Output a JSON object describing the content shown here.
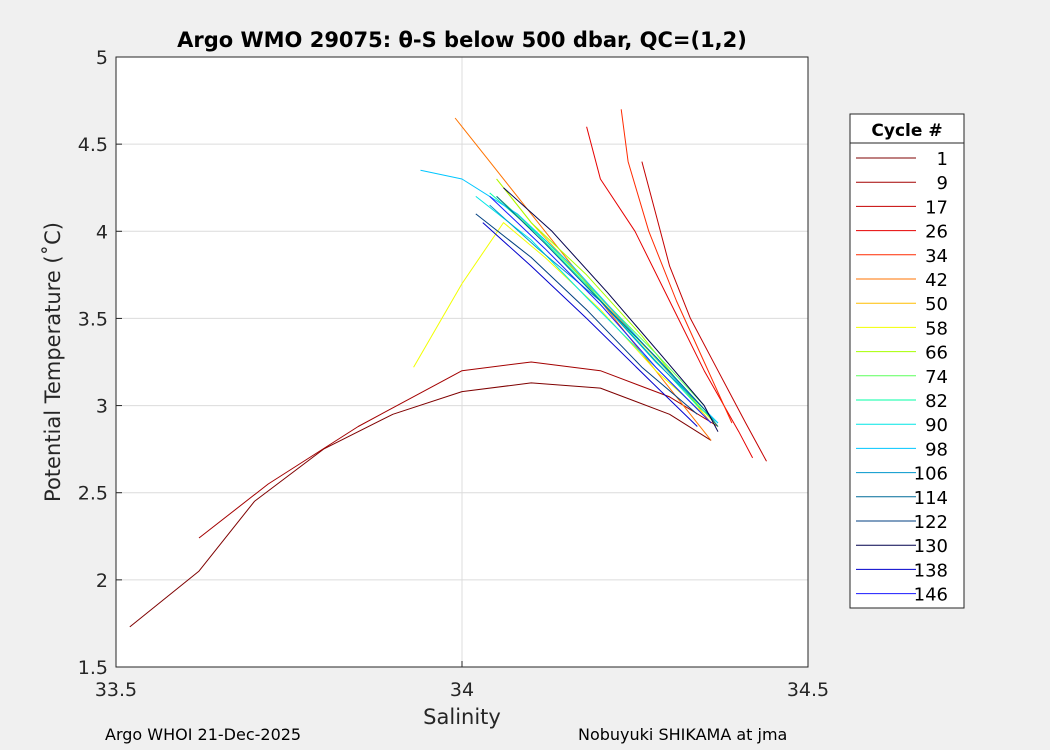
{
  "chart_data": {
    "type": "line",
    "title": "Argo WMO 29075: θ-S below 500 dbar,  QC=(1,2)",
    "xlabel": "Salinity",
    "ylabel": "Potential Temperature (˚C)",
    "xlim": [
      33.5,
      34.5
    ],
    "ylim": [
      1.5,
      5
    ],
    "xticks": [
      33.5,
      34,
      34.5
    ],
    "xtick_labels": [
      "33.5",
      "34",
      "34.5"
    ],
    "yticks": [
      1.5,
      2,
      2.5,
      3,
      3.5,
      4,
      4.5,
      5
    ],
    "ytick_labels": [
      "1.5",
      "2",
      "2.5",
      "3",
      "3.5",
      "4",
      "4.5",
      "5"
    ],
    "grid": true,
    "legend_title": "Cycle #",
    "legend_position": "right",
    "series": [
      {
        "name": "1",
        "color": "#7f0000",
        "values": [
          [
            33.52,
            1.73
          ],
          [
            33.62,
            2.05
          ],
          [
            33.7,
            2.45
          ],
          [
            33.8,
            2.75
          ],
          [
            33.9,
            2.95
          ],
          [
            34.0,
            3.08
          ],
          [
            34.1,
            3.13
          ],
          [
            34.2,
            3.1
          ],
          [
            34.3,
            2.95
          ],
          [
            34.36,
            2.8
          ]
        ]
      },
      {
        "name": "9",
        "color": "#a30000",
        "values": [
          [
            33.62,
            2.24
          ],
          [
            33.72,
            2.55
          ],
          [
            33.85,
            2.88
          ],
          [
            34.0,
            3.2
          ],
          [
            34.1,
            3.25
          ],
          [
            34.2,
            3.2
          ],
          [
            34.3,
            3.05
          ],
          [
            34.37,
            2.88
          ]
        ]
      },
      {
        "name": "17",
        "color": "#c40000",
        "values": [
          [
            34.26,
            4.4
          ],
          [
            34.28,
            4.1
          ],
          [
            34.3,
            3.8
          ],
          [
            34.33,
            3.5
          ],
          [
            34.37,
            3.2
          ],
          [
            34.41,
            2.9
          ],
          [
            34.44,
            2.68
          ]
        ]
      },
      {
        "name": "26",
        "color": "#e60000",
        "values": [
          [
            34.18,
            4.6
          ],
          [
            34.2,
            4.3
          ],
          [
            34.25,
            4.0
          ],
          [
            34.3,
            3.6
          ],
          [
            34.35,
            3.2
          ],
          [
            34.4,
            2.85
          ],
          [
            34.42,
            2.7
          ]
        ]
      },
      {
        "name": "34",
        "color": "#ff2a00",
        "values": [
          [
            34.23,
            4.7
          ],
          [
            34.24,
            4.4
          ],
          [
            34.27,
            4.0
          ],
          [
            34.31,
            3.6
          ],
          [
            34.35,
            3.25
          ],
          [
            34.39,
            2.9
          ]
        ]
      },
      {
        "name": "42",
        "color": "#ff7300",
        "values": [
          [
            33.99,
            4.65
          ],
          [
            34.04,
            4.4
          ],
          [
            34.1,
            4.1
          ],
          [
            34.18,
            3.7
          ],
          [
            34.26,
            3.3
          ],
          [
            34.32,
            3.0
          ],
          [
            34.36,
            2.8
          ]
        ]
      },
      {
        "name": "50",
        "color": "#ffbd00",
        "values": [
          [
            34.05,
            4.3
          ],
          [
            34.1,
            4.05
          ],
          [
            34.17,
            3.75
          ],
          [
            34.25,
            3.4
          ],
          [
            34.32,
            3.1
          ],
          [
            34.36,
            2.9
          ]
        ]
      },
      {
        "name": "58",
        "color": "#f2ff00",
        "values": [
          [
            33.93,
            3.22
          ],
          [
            34.0,
            3.7
          ],
          [
            34.06,
            4.05
          ],
          [
            34.12,
            3.85
          ],
          [
            34.2,
            3.55
          ],
          [
            34.28,
            3.2
          ],
          [
            34.35,
            2.95
          ]
        ]
      },
      {
        "name": "66",
        "color": "#a6ff00",
        "values": [
          [
            34.05,
            4.3
          ],
          [
            34.1,
            4.05
          ],
          [
            34.18,
            3.75
          ],
          [
            34.26,
            3.4
          ],
          [
            34.33,
            3.05
          ],
          [
            34.37,
            2.88
          ]
        ]
      },
      {
        "name": "74",
        "color": "#5cff5c",
        "values": [
          [
            34.05,
            4.2
          ],
          [
            34.12,
            3.95
          ],
          [
            34.2,
            3.62
          ],
          [
            34.28,
            3.3
          ],
          [
            34.35,
            3.0
          ]
        ]
      },
      {
        "name": "82",
        "color": "#00ffa6",
        "values": [
          [
            34.04,
            4.22
          ],
          [
            34.11,
            3.98
          ],
          [
            34.19,
            3.65
          ],
          [
            34.27,
            3.3
          ],
          [
            34.34,
            3.0
          ],
          [
            34.37,
            2.9
          ]
        ]
      },
      {
        "name": "90",
        "color": "#00e6e6",
        "values": [
          [
            34.02,
            4.2
          ],
          [
            34.1,
            3.95
          ],
          [
            34.18,
            3.62
          ],
          [
            34.26,
            3.3
          ],
          [
            34.34,
            2.98
          ]
        ]
      },
      {
        "name": "98",
        "color": "#00c6ff",
        "values": [
          [
            33.94,
            4.35
          ],
          [
            34.0,
            4.3
          ],
          [
            34.08,
            4.1
          ],
          [
            34.16,
            3.8
          ],
          [
            34.24,
            3.45
          ],
          [
            34.32,
            3.1
          ],
          [
            34.37,
            2.9
          ]
        ]
      },
      {
        "name": "106",
        "color": "#0096cc",
        "values": [
          [
            34.04,
            4.15
          ],
          [
            34.11,
            3.9
          ],
          [
            34.2,
            3.6
          ],
          [
            34.28,
            3.25
          ],
          [
            34.35,
            2.98
          ]
        ]
      },
      {
        "name": "114",
        "color": "#006b99",
        "values": [
          [
            34.05,
            4.2
          ],
          [
            34.12,
            3.93
          ],
          [
            34.2,
            3.6
          ],
          [
            34.28,
            3.28
          ],
          [
            34.35,
            2.98
          ],
          [
            34.37,
            2.88
          ]
        ]
      },
      {
        "name": "122",
        "color": "#003f80",
        "values": [
          [
            34.02,
            4.1
          ],
          [
            34.1,
            3.85
          ],
          [
            34.18,
            3.55
          ],
          [
            34.26,
            3.22
          ],
          [
            34.34,
            2.95
          ]
        ]
      },
      {
        "name": "130",
        "color": "#00004d",
        "values": [
          [
            34.06,
            4.25
          ],
          [
            34.13,
            4.0
          ],
          [
            34.21,
            3.65
          ],
          [
            34.29,
            3.28
          ],
          [
            34.35,
            3.0
          ],
          [
            34.37,
            2.85
          ]
        ]
      },
      {
        "name": "138",
        "color": "#0000cc",
        "values": [
          [
            34.03,
            4.05
          ],
          [
            34.1,
            3.8
          ],
          [
            34.18,
            3.5
          ],
          [
            34.27,
            3.15
          ],
          [
            34.34,
            2.88
          ]
        ]
      },
      {
        "name": "146",
        "color": "#1a1aff",
        "values": [
          [
            34.04,
            4.2
          ],
          [
            34.12,
            3.9
          ],
          [
            34.2,
            3.58
          ],
          [
            34.28,
            3.22
          ],
          [
            34.36,
            2.9
          ]
        ]
      }
    ]
  },
  "footer": {
    "left": "Argo WHOI 21-Dec-2025",
    "right": "Nobuyuki SHIKAMA at jma"
  }
}
